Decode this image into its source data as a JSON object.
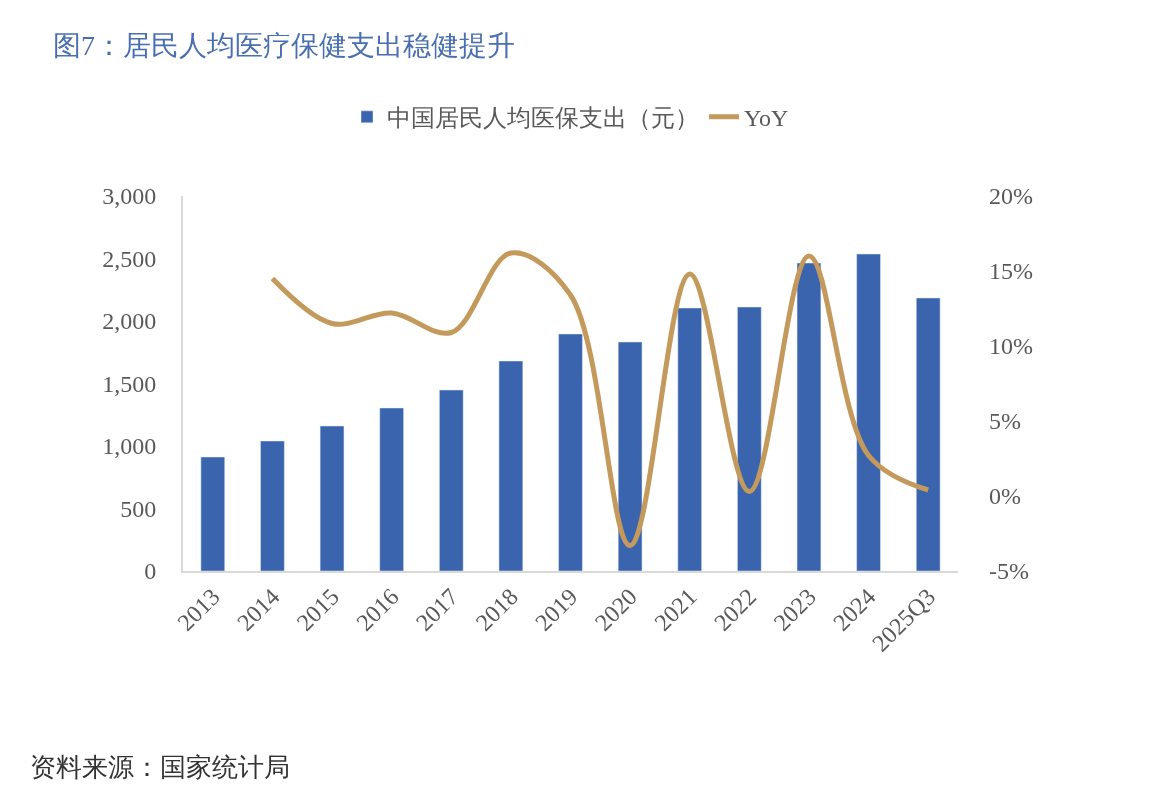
{
  "chart_data": {
    "type": "bar",
    "title": "图7：居民人均医疗保健支出稳健提升",
    "categories": [
      "2013",
      "2014",
      "2015",
      "2016",
      "2017",
      "2018",
      "2019",
      "2020",
      "2021",
      "2022",
      "2023",
      "2024",
      "2025Q3"
    ],
    "series": [
      {
        "name": "中国居民人均医保支出（元）",
        "color": "#3a64ae",
        "values": [
          912,
          1040,
          1160,
          1304,
          1448,
          1680,
          1896,
          1832,
          2104,
          2112,
          2464,
          2536,
          2184
        ]
      },
      {
        "name": "YoY",
        "type": "line",
        "axis": "y2",
        "color": "#c49a5c",
        "values": [
          null,
          14.5,
          11.5,
          12.2,
          10.9,
          16.2,
          13.4,
          -3.3,
          14.8,
          0.3,
          16.0,
          2.7,
          0.4
        ]
      }
    ],
    "ylim": [
      0,
      3000
    ],
    "yticks": [
      {
        "value": 0,
        "label": "0"
      },
      {
        "value": 500,
        "label": "500"
      },
      {
        "value": 1000,
        "label": "1,000"
      },
      {
        "value": 1500,
        "label": "1,500"
      },
      {
        "value": 2000,
        "label": "2,000"
      },
      {
        "value": 2500,
        "label": "2,500"
      },
      {
        "value": 3000,
        "label": "3,000"
      }
    ],
    "y2lim": [
      -5,
      20
    ],
    "y2ticks": [
      {
        "value": -5,
        "label": "-5%"
      },
      {
        "value": 0,
        "label": "0%"
      },
      {
        "value": 5,
        "label": "5%"
      },
      {
        "value": 10,
        "label": "10%"
      },
      {
        "value": 15,
        "label": "15%"
      },
      {
        "value": 20,
        "label": "20%"
      }
    ],
    "legend": "top",
    "marker": "none",
    "annotations": [
      "资料来源：国家统计局"
    ]
  }
}
